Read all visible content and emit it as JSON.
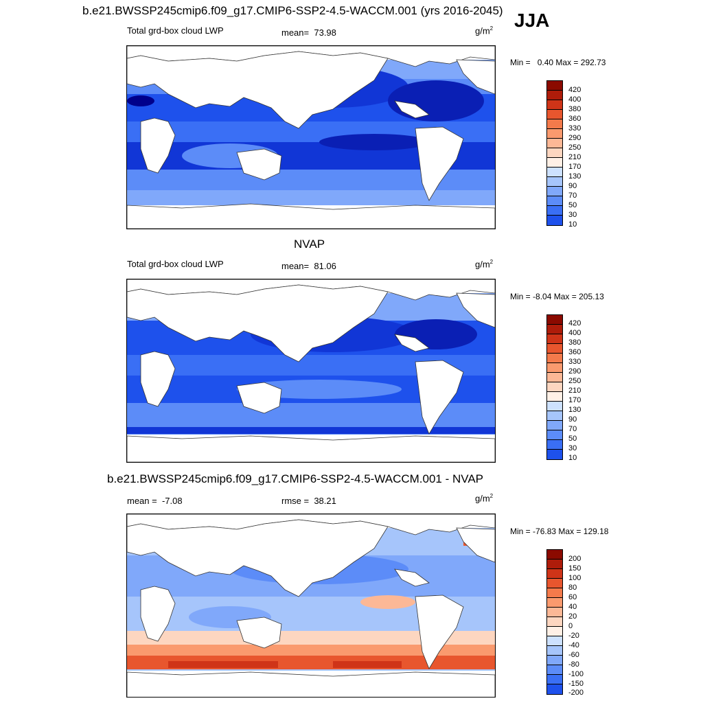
{
  "header": {
    "case_title": "b.e21.BWSSP245cmip6.f09_g17.CMIP6-SSP2-4.5-WACCM.001 (yrs 2016-2045)",
    "season": "JJA"
  },
  "colors": {
    "blues": [
      "#00008b",
      "#0a1fb4",
      "#1136d6",
      "#1e51ec",
      "#3a6ff5",
      "#5c8cf8",
      "#80a8fa",
      "#a6c5fb",
      "#cde1fe",
      "#eef5ff"
    ],
    "reds": [
      "#fff0e6",
      "#fdd6c0",
      "#fcb896",
      "#fa9a6e",
      "#f47a4b",
      "#e8562e",
      "#cf3418",
      "#ae1c0a",
      "#8b0a00"
    ]
  },
  "chart_data": [
    {
      "type": "heatmap",
      "title": "b.e21.BWSSP245cmip6.f09_g17.CMIP6-SSP2-4.5-WACCM.001 (yrs 2016-2045)",
      "variable": "Total grd-box cloud LWP",
      "mean_label": "mean=",
      "mean": "73.98",
      "units": "g/m",
      "units_exp": "2",
      "min_label": "Min =",
      "min": "0.40",
      "max_label": "Max =",
      "max": "292.73",
      "colorbar_levels": [
        "420",
        "400",
        "380",
        "360",
        "330",
        "290",
        "250",
        "210",
        "170",
        "130",
        "90",
        "70",
        "50",
        "30",
        "10"
      ]
    },
    {
      "type": "heatmap",
      "title": "NVAP",
      "variable": "Total grd-box cloud LWP",
      "mean_label": "mean=",
      "mean": "81.06",
      "units": "g/m",
      "units_exp": "2",
      "min_label": "Min =",
      "min": "-8.04",
      "max_label": "Max =",
      "max": "205.13",
      "colorbar_levels": [
        "420",
        "400",
        "380",
        "360",
        "330",
        "290",
        "250",
        "210",
        "170",
        "130",
        "90",
        "70",
        "50",
        "30",
        "10"
      ]
    },
    {
      "type": "heatmap",
      "title": "b.e21.BWSSP245cmip6.f09_g17.CMIP6-SSP2-4.5-WACCM.001 - NVAP",
      "mean_label": "mean =",
      "mean": "-7.08",
      "rmse_label": "rmse =",
      "rmse": "38.21",
      "units": "g/m",
      "units_exp": "2",
      "min_label": "Min =",
      "min": "-76.83",
      "max_label": "Max =",
      "max": "129.18",
      "colorbar_levels": [
        "200",
        "150",
        "100",
        "80",
        "60",
        "40",
        "20",
        "0",
        "-20",
        "-40",
        "-60",
        "-80",
        "-100",
        "-150",
        "-200"
      ]
    }
  ]
}
